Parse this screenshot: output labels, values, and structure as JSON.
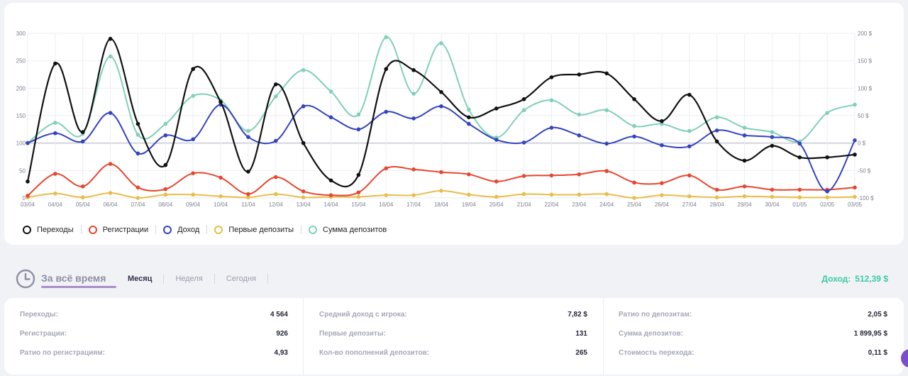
{
  "chart_data": {
    "type": "line",
    "categories": [
      "03/04",
      "04/04",
      "05/04",
      "06/04",
      "07/04",
      "08/04",
      "09/04",
      "10/04",
      "11/04",
      "12/04",
      "13/04",
      "14/04",
      "15/04",
      "16/04",
      "17/04",
      "18/04",
      "19/04",
      "20/04",
      "21/04",
      "22/04",
      "23/04",
      "24/04",
      "25/04",
      "26/04",
      "27/04",
      "28/04",
      "29/04",
      "30/04",
      "01/05",
      "02/05",
      "03/05"
    ],
    "y_left": {
      "ylim": [
        0,
        300
      ],
      "ticks": [
        "0",
        "50",
        "100",
        "150",
        "200",
        "250",
        "300"
      ]
    },
    "y_right": {
      "ylim": [
        -100,
        200
      ],
      "ticks": [
        "-100 $",
        "-50 $",
        "0 $",
        "50 $",
        "100 $",
        "150 $",
        "200 $"
      ]
    },
    "grid": true,
    "legend_position": "bottom-left",
    "series": [
      {
        "name": "Переходы",
        "axis": "left",
        "color": "#111111",
        "values": [
          30,
          245,
          120,
          290,
          135,
          60,
          235,
          175,
          48,
          207,
          100,
          32,
          42,
          235,
          233,
          193,
          147,
          163,
          180,
          220,
          225,
          227,
          180,
          140,
          188,
          103,
          68,
          95,
          74,
          74,
          79
        ]
      },
      {
        "name": "Регистрации",
        "axis": "left",
        "color": "#e8452e",
        "values": [
          4,
          44,
          21,
          62,
          19,
          16,
          45,
          37,
          7,
          38,
          12,
          5,
          10,
          54,
          52,
          47,
          43,
          30,
          40,
          41,
          43,
          49,
          28,
          27,
          41,
          15,
          21,
          15,
          15,
          15,
          19
        ]
      },
      {
        "name": "Доход",
        "axis": "left",
        "color": "#3443c0",
        "values": [
          100,
          118,
          103,
          155,
          81,
          114,
          107,
          170,
          111,
          104,
          167,
          147,
          125,
          157,
          145,
          167,
          135,
          106,
          101,
          128,
          114,
          99,
          112,
          96,
          94,
          123,
          114,
          111,
          99,
          12,
          105
        ]
      },
      {
        "name": "Первые депозиты",
        "axis": "left",
        "color": "#e8bd4a",
        "values": [
          1,
          8,
          1,
          9,
          0,
          6,
          6,
          3,
          1,
          7,
          1,
          2,
          2,
          5,
          5,
          13,
          6,
          2,
          7,
          6,
          6,
          7,
          0,
          5,
          3,
          1,
          3,
          2,
          1,
          1,
          2
        ]
      },
      {
        "name": "Сумма депозитов",
        "axis": "left",
        "color": "#7fd0b8",
        "values": [
          100,
          137,
          117,
          258,
          115,
          135,
          186,
          178,
          122,
          185,
          233,
          194,
          152,
          293,
          190,
          282,
          161,
          110,
          160,
          178,
          152,
          160,
          131,
          135,
          122,
          147,
          128,
          120,
          103,
          155,
          170
        ]
      }
    ]
  },
  "period": {
    "main": "За всё время",
    "tabs": [
      "Месяц",
      "Неделя",
      "Сегодня"
    ],
    "active_tab": 0,
    "income_label": "Доход:",
    "income_value": "512,39 $"
  },
  "stats": {
    "col1": [
      {
        "label": "Переходы:",
        "value": "4 564"
      },
      {
        "label": "Регистрации:",
        "value": "926"
      },
      {
        "label": "Ратио по регистрациям:",
        "value": "4,93"
      }
    ],
    "col2": [
      {
        "label": "Средний доход с игрока:",
        "value": "7,82 $"
      },
      {
        "label": "Первые депозиты:",
        "value": "131"
      },
      {
        "label": "Кол-во пополнений депозитов:",
        "value": "265"
      }
    ],
    "col3": [
      {
        "label": "Ратио по депозитам:",
        "value": "2,05 $"
      },
      {
        "label": "Сумма депозитов:",
        "value": "1 899,95 $"
      },
      {
        "label": "Стоимость перехода:",
        "value": "0,11 $"
      }
    ]
  },
  "colors": {
    "accent_purple": "#a98fc7",
    "income_green": "#3cc8a6",
    "chat_purple": "#7b4fc9"
  }
}
